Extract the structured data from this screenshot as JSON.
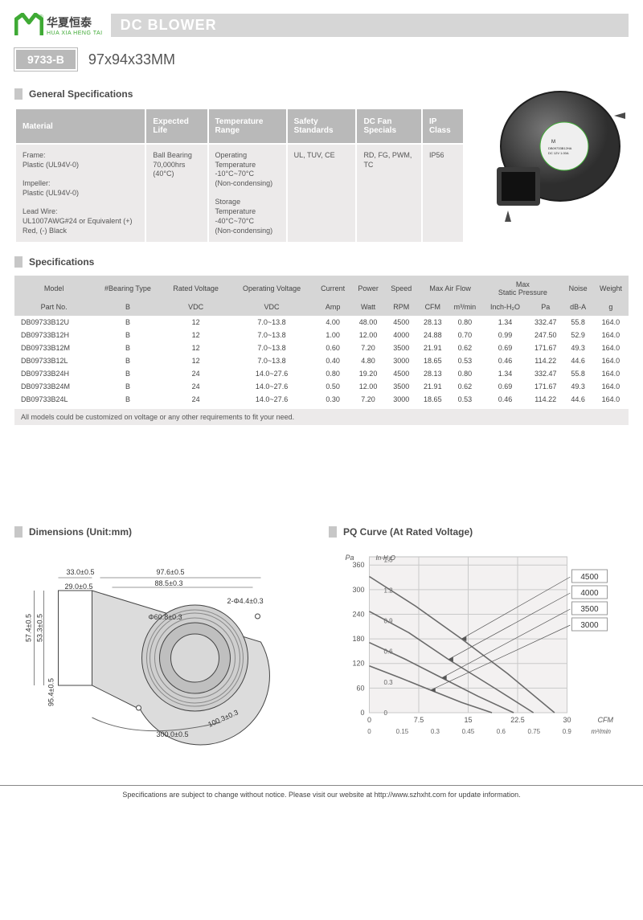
{
  "header": {
    "brand_cn": "华夏恒泰",
    "brand_en": "HUA XIA HENG TAI",
    "title": "DC BLOWER",
    "model_code": "9733-B",
    "model_dims": "97x94x33MM"
  },
  "sections": {
    "gs": "General Specifications",
    "spec": "Specifications",
    "dims": "Dimensions (Unit:mm)",
    "pq": "PQ Curve (At Rated Voltage)"
  },
  "gen_spec": {
    "cols": [
      "Material",
      "Expected Life",
      "Temperature Range",
      "Safety Standards",
      "DC Fan Specials",
      "IP Class"
    ],
    "row": [
      "Frame:\nPlastic (UL94V-0)\n\nImpeller:\nPlastic (UL94V-0)\n\nLead Wire:\nUL1007AWG#24 or Equivalent (+) Red, (-) Black",
      "Ball Bearing\n70,000hrs (40°C)",
      "Operating Temperature\n-10°C~70°C\n(Non-condensing)\n\nStorage Temperature\n-40°C~70°C\n(Non-condensing)",
      "UL, TUV, CE",
      "RD, FG, PWM, TC",
      "IP56"
    ]
  },
  "spec_table": {
    "h1": [
      "Model",
      "#Bearing Type",
      "Rated Voltage",
      "Operating Voltage",
      "Current",
      "Power",
      "Speed",
      "Max  Air  Flow",
      "",
      "Max\nStatic Pressure",
      "",
      "Noise",
      "Weight"
    ],
    "h2": [
      "Part No.",
      "B",
      "VDC",
      "VDC",
      "Amp",
      "Watt",
      "RPM",
      "CFM",
      "m³/min",
      "Inch-H₂O",
      "Pa",
      "dB-A",
      "g"
    ],
    "rows": [
      [
        "DB09733B12U",
        "B",
        "12",
        "7.0~13.8",
        "4.00",
        "48.00",
        "4500",
        "28.13",
        "0.80",
        "1.34",
        "332.47",
        "55.8",
        "164.0"
      ],
      [
        "DB09733B12H",
        "B",
        "12",
        "7.0~13.8",
        "1.00",
        "12.00",
        "4000",
        "24.88",
        "0.70",
        "0.99",
        "247.50",
        "52.9",
        "164.0"
      ],
      [
        "DB09733B12M",
        "B",
        "12",
        "7.0~13.8",
        "0.60",
        "7.20",
        "3500",
        "21.91",
        "0.62",
        "0.69",
        "171.67",
        "49.3",
        "164.0"
      ],
      [
        "DB09733B12L",
        "B",
        "12",
        "7.0~13.8",
        "0.40",
        "4.80",
        "3000",
        "18.65",
        "0.53",
        "0.46",
        "114.22",
        "44.6",
        "164.0"
      ],
      [
        "DB09733B24H",
        "B",
        "24",
        "14.0~27.6",
        "0.80",
        "19.20",
        "4500",
        "28.13",
        "0.80",
        "1.34",
        "332.47",
        "55.8",
        "164.0"
      ],
      [
        "DB09733B24M",
        "B",
        "24",
        "14.0~27.6",
        "0.50",
        "12.00",
        "3500",
        "21.91",
        "0.62",
        "0.69",
        "171.67",
        "49.3",
        "164.0"
      ],
      [
        "DB09733B24L",
        "B",
        "24",
        "14.0~27.6",
        "0.30",
        "7.20",
        "3000",
        "18.65",
        "0.53",
        "0.46",
        "114.22",
        "44.6",
        "164.0"
      ]
    ],
    "note": "All models could be customized on voltage or any other requirements to fit your need."
  },
  "dimensions": {
    "labels": [
      "33.0±0.5",
      "97.6±0.5",
      "88.5±0.3",
      "29.0±0.5",
      "Φ60.8±0.3",
      "2-Φ4.4±0.3",
      "57.4±0.5",
      "53.3±0.5",
      "95.4±0.5",
      "100.3±0.3",
      "300.0±0.5"
    ]
  },
  "pq": {
    "x_cfm": [
      0,
      7.5,
      15.0,
      22.5,
      30.0
    ],
    "x_m3": [
      0,
      0.15,
      0.3,
      0.45,
      0.6,
      0.75,
      0.9
    ],
    "y_pa": [
      0,
      60,
      120,
      180,
      240,
      300,
      360
    ],
    "y_in": [
      0,
      0.3,
      0.6,
      0.9,
      1.2,
      1.5
    ],
    "curve_labels": [
      "4500",
      "4000",
      "3500",
      "3000"
    ],
    "colors": {
      "bg": "#f3f1f1",
      "grid": "#c9c9c9",
      "axis": "#555",
      "line": "#6a6a6a",
      "frame": "#bfbfbf"
    },
    "curves": [
      [
        [
          0,
          332
        ],
        [
          7,
          260
        ],
        [
          14,
          180
        ],
        [
          21,
          95
        ],
        [
          28.1,
          0
        ]
      ],
      [
        [
          0,
          247
        ],
        [
          6,
          195
        ],
        [
          12,
          130
        ],
        [
          19,
          60
        ],
        [
          24.9,
          0
        ]
      ],
      [
        [
          0,
          171
        ],
        [
          5.5,
          130
        ],
        [
          11,
          85
        ],
        [
          16.5,
          40
        ],
        [
          21.9,
          0
        ]
      ],
      [
        [
          0,
          114
        ],
        [
          4.7,
          85
        ],
        [
          9.3,
          55
        ],
        [
          14,
          25
        ],
        [
          18.6,
          0
        ]
      ]
    ]
  },
  "footer": "Specifications are subject to change without notice. Please visit our website at http://www.szhxht.com for update information.",
  "style": {
    "brand_green": "#3faa35",
    "band_gray": "#d6d6d6",
    "head_gray": "#b9b9b9",
    "cell_gray": "#eceaea"
  }
}
